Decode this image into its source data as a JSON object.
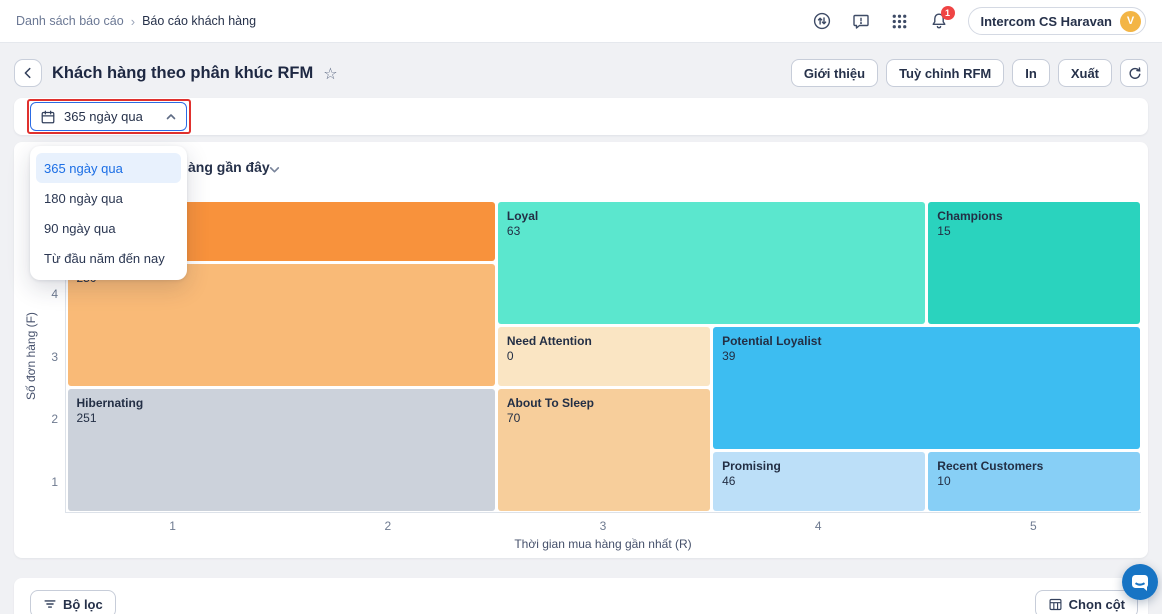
{
  "topbar": {
    "breadcrumb": [
      {
        "label": "Danh sách báo cáo"
      },
      {
        "label": "Báo cáo khách hàng"
      }
    ],
    "breadcrumb_separator": "›",
    "icons": [
      "history-icon",
      "feedback-icon",
      "apps-grid-icon",
      "notifications-bell-icon"
    ],
    "notification_count": "1",
    "account": {
      "name": "Intercom CS Haravan",
      "avatar_initial": "V",
      "avatar_color": "#F3B545"
    }
  },
  "header": {
    "title": "Khách hàng theo phân khúc RFM",
    "actions": [
      {
        "label": "Giới thiệu"
      },
      {
        "label": "Tuỳ chỉnh RFM"
      },
      {
        "label": "In"
      },
      {
        "label": "Xuất"
      }
    ]
  },
  "date_filter": {
    "selected": "365 ngày qua",
    "options": [
      "365 ngày qua",
      "180 ngày qua",
      "90 ngày qua",
      "Từ đầu năm đến nay"
    ],
    "annotation_color": "#E0312E",
    "dropdown_open": true
  },
  "chart_card": {
    "title_visible_fragment": "àng gần đây"
  },
  "chart_data": {
    "type": "treemap",
    "title": "",
    "xlabel": "Thời gian mua hàng gần nhất (R)",
    "ylabel": "Số đơn hàng (F)",
    "x_ticks": [
      "1",
      "2",
      "3",
      "4",
      "5"
    ],
    "y_ticks": [
      "4",
      "3",
      "2",
      "1"
    ],
    "x_range": [
      1,
      5
    ],
    "y_range": [
      1,
      5
    ],
    "grid": false,
    "legend": "none",
    "segments": [
      {
        "label": "",
        "value": "",
        "r": [
          1,
          2
        ],
        "f": [
          5,
          5
        ],
        "color": "#F8923C"
      },
      {
        "label": "",
        "value": "250",
        "r": [
          1,
          2
        ],
        "f": [
          3,
          4
        ],
        "color": "#F9BA77"
      },
      {
        "label": "Hibernating",
        "value": "251",
        "r": [
          1,
          2
        ],
        "f": [
          1,
          2
        ],
        "color": "#CCD2DB"
      },
      {
        "label": "Loyal",
        "value": "63",
        "r": [
          3,
          4
        ],
        "f": [
          4,
          5
        ],
        "color": "#5BE7CE"
      },
      {
        "label": "Champions",
        "value": "15",
        "r": [
          5,
          5
        ],
        "f": [
          4,
          5
        ],
        "color": "#2AD3BE"
      },
      {
        "label": "Need Attention",
        "value": "0",
        "r": [
          3,
          3
        ],
        "f": [
          3,
          3
        ],
        "color": "#FAE5C3"
      },
      {
        "label": "Potential Loyalist",
        "value": "39",
        "r": [
          4,
          5
        ],
        "f": [
          2,
          3
        ],
        "color": "#3DBDF1"
      },
      {
        "label": "About To Sleep",
        "value": "70",
        "r": [
          3,
          3
        ],
        "f": [
          1,
          2
        ],
        "color": "#F7CE9B"
      },
      {
        "label": "Promising",
        "value": "46",
        "r": [
          4,
          4
        ],
        "f": [
          1,
          1
        ],
        "color": "#BCDFF8"
      },
      {
        "label": "Recent Customers",
        "value": "10",
        "r": [
          5,
          5
        ],
        "f": [
          1,
          1
        ],
        "color": "#87CFF6"
      }
    ]
  },
  "footer": {
    "filter_label": "Bộ lọc",
    "choose_columns_label": "Chọn cột"
  },
  "chat": {
    "color": "#1774C4"
  }
}
